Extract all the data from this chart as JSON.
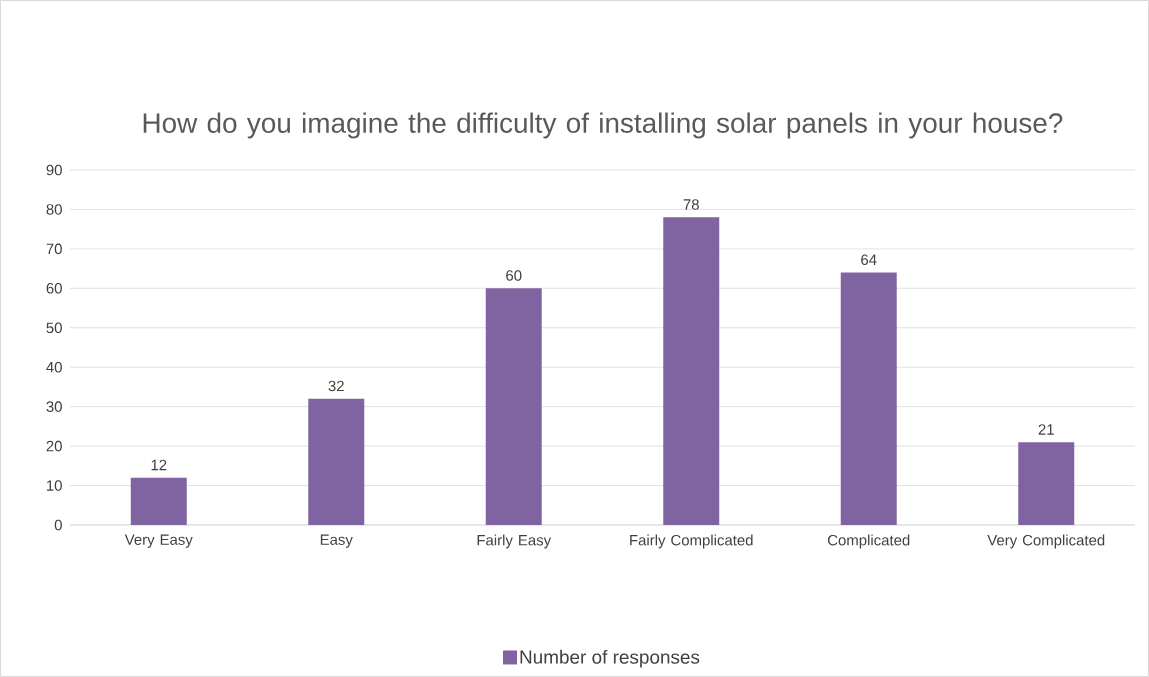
{
  "chart_data": {
    "type": "bar",
    "title": "How do you imagine the difficulty of installing solar panels in your house?",
    "categories": [
      "Very Easy",
      "Easy",
      "Fairly Easy",
      "Fairly Complicated",
      "Complicated",
      "Very Complicated"
    ],
    "series": [
      {
        "name": "Number of responses",
        "color": "#8064a2",
        "values": [
          12,
          32,
          60,
          78,
          64,
          21
        ]
      }
    ],
    "ylim": [
      0,
      90
    ],
    "yticks": [
      0,
      10,
      20,
      30,
      40,
      50,
      60,
      70,
      80,
      90
    ],
    "grid": "y",
    "legend": "bottom",
    "data_labels": true
  }
}
